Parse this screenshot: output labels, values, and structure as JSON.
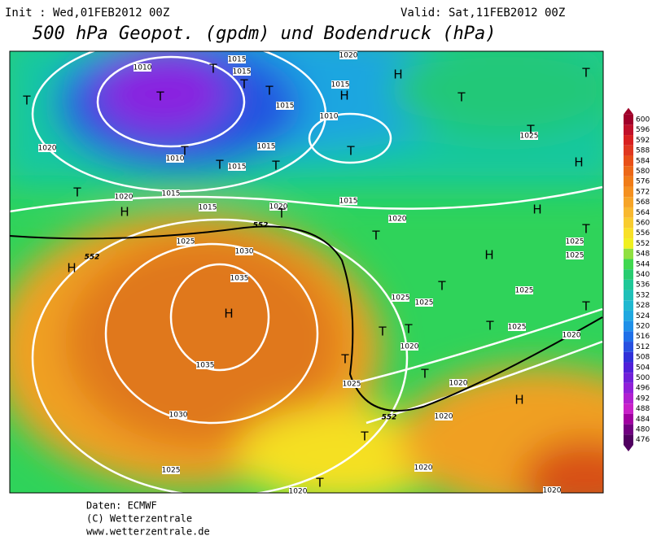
{
  "header": {
    "init": "Init : Wed,01FEB2012 00Z",
    "valid": "Valid: Sat,11FEB2012 00Z",
    "title": "500 hPa Geopot. (gpdm) und Bodendruck (hPa)"
  },
  "map": {
    "pressure_labels": [
      "1010",
      "1015",
      "1015",
      "1015",
      "1015",
      "1010",
      "1020",
      "1020",
      "1010",
      "1015",
      "1015",
      "1020",
      "1015",
      "1015",
      "1020",
      "1015",
      "1020",
      "1025",
      "1030",
      "1035",
      "1025",
      "1025",
      "1025",
      "1025",
      "1025",
      "1025",
      "1020",
      "1020",
      "1035",
      "1025",
      "1020",
      "1030",
      "1020",
      "1020",
      "1025",
      "1020",
      "1020",
      "1025"
    ],
    "height_labels": [
      "552",
      "552",
      "552"
    ],
    "centers": [
      "T",
      "T",
      "T",
      "T",
      "T",
      "H",
      "H",
      "T",
      "T",
      "T",
      "T",
      "T",
      "T",
      "T",
      "T",
      "H",
      "T",
      "H",
      "H",
      "T",
      "T",
      "H",
      "H",
      "T",
      "T",
      "T",
      "H",
      "T",
      "T",
      "T",
      "T",
      "H",
      "T",
      "T"
    ]
  },
  "colorbar": {
    "levels": [
      600,
      596,
      592,
      588,
      584,
      580,
      576,
      572,
      568,
      564,
      560,
      556,
      552,
      548,
      544,
      540,
      536,
      532,
      528,
      524,
      520,
      516,
      512,
      508,
      504,
      500,
      496,
      492,
      488,
      484,
      480,
      476
    ]
  },
  "footer": {
    "source": "Daten: ECMWF",
    "copyright": "(C) Wetterzentrale",
    "url": "www.wetterzentrale.de"
  }
}
